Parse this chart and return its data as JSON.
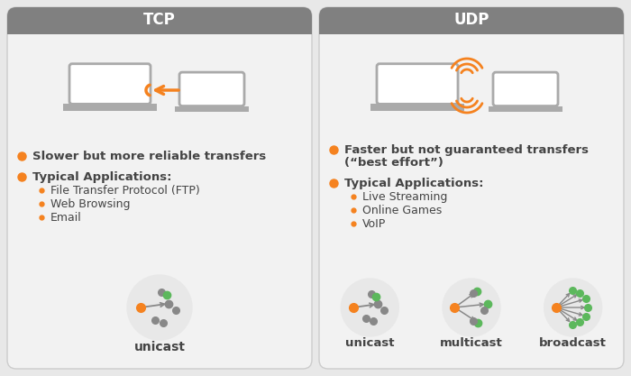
{
  "bg_color": "#e8e8e8",
  "header_color": "#808080",
  "card_bg": "#f2f2f2",
  "white": "#ffffff",
  "orange": "#f5821f",
  "dark_gray": "#444444",
  "mid_gray": "#888888",
  "green": "#5cb85c",
  "tcp_title": "TCP",
  "udp_title": "UDP",
  "tcp_bullet1": "Slower but more reliable transfers",
  "tcp_apps_title": "Typical Applications:",
  "tcp_apps": [
    "File Transfer Protocol (FTP)",
    "Web Browsing",
    "Email"
  ],
  "tcp_cast": [
    "unicast"
  ],
  "udp_bullet1_line1": "Faster but not guaranteed transfers",
  "udp_bullet1_line2": "(“best effort”)",
  "udp_apps_title": "Typical Applications:",
  "udp_apps": [
    "Live Streaming",
    "Online Games",
    "VoIP"
  ],
  "udp_cast": [
    "unicast",
    "multicast",
    "broadcast"
  ],
  "figw": 7.0,
  "figh": 4.17,
  "dpi": 100
}
